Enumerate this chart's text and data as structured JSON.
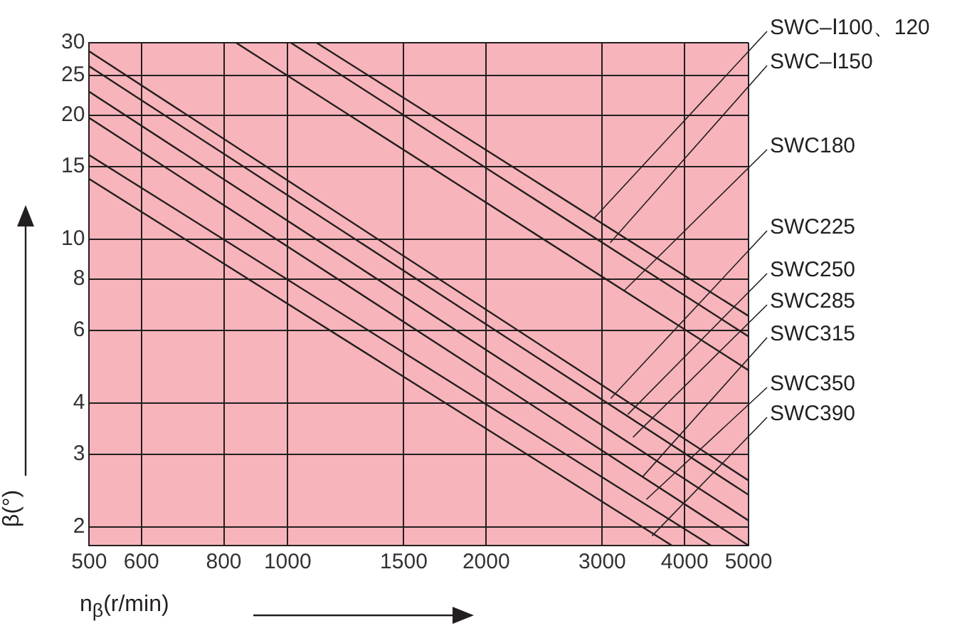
{
  "chart_data": {
    "type": "line",
    "xlabel": "n$_{β}$(r/min)",
    "ylabel": "β(°)",
    "log": "xy",
    "grid": true,
    "legend": false,
    "marker": "none",
    "line_style": "solid",
    "xlim": [
      500,
      5000
    ],
    "xticks": [
      500,
      600,
      800,
      1000,
      1500,
      2000,
      3000,
      4000,
      5000
    ],
    "ylim": [
      1.8,
      30
    ],
    "yticks": [
      2,
      3,
      4,
      6,
      8,
      10,
      15,
      20,
      25,
      30
    ],
    "series": [
      {
        "color": "#231f20",
        "x": [
          1106,
          5000
        ],
        "values": [
          30,
          6.5
        ]
      },
      {
        "color": "#231f20",
        "x": [
          1011,
          5000
        ],
        "values": [
          30,
          5.8
        ]
      },
      {
        "color": "#231f20",
        "x": [
          835,
          5000
        ],
        "values": [
          30,
          4.8
        ]
      },
      {
        "color": "#231f20",
        "x": [
          500,
          5000
        ],
        "values": [
          28.6,
          2.59
        ]
      },
      {
        "color": "#231f20",
        "x": [
          500,
          5000
        ],
        "values": [
          26.3,
          2.39
        ]
      },
      {
        "color": "#231f20",
        "x": [
          500,
          5000
        ],
        "values": [
          22.8,
          2.07
        ]
      },
      {
        "color": "#231f20",
        "x": [
          500,
          5000
        ],
        "values": [
          19.7,
          1.8
        ]
      },
      {
        "color": "#231f20",
        "x": [
          500,
          4385
        ],
        "values": [
          16,
          1.8
        ]
      },
      {
        "color": "#231f20",
        "x": [
          500,
          3826
        ],
        "values": [
          14,
          1.8
        ]
      }
    ],
    "annotations": [
      {
        "text": "SWC–Ⅰ100、120",
        "x": 2910,
        "y": 11.2
      },
      {
        "text": "SWC–Ⅰ150",
        "x": 3085,
        "y": 9.8
      },
      {
        "text": "SWC180",
        "x": 3235,
        "y": 7.48
      },
      {
        "text": "SWC225",
        "x": 3090,
        "y": 4.1
      },
      {
        "text": "SWC250",
        "x": 3280,
        "y": 3.75
      },
      {
        "text": "SWC285",
        "x": 3340,
        "y": 3.3
      },
      {
        "text": "SWC315",
        "x": 3450,
        "y": 2.64
      },
      {
        "text": "SWC350",
        "x": 3500,
        "y": 2.33
      },
      {
        "text": "SWC390",
        "x": 3570,
        "y": 1.9
      }
    ]
  }
}
